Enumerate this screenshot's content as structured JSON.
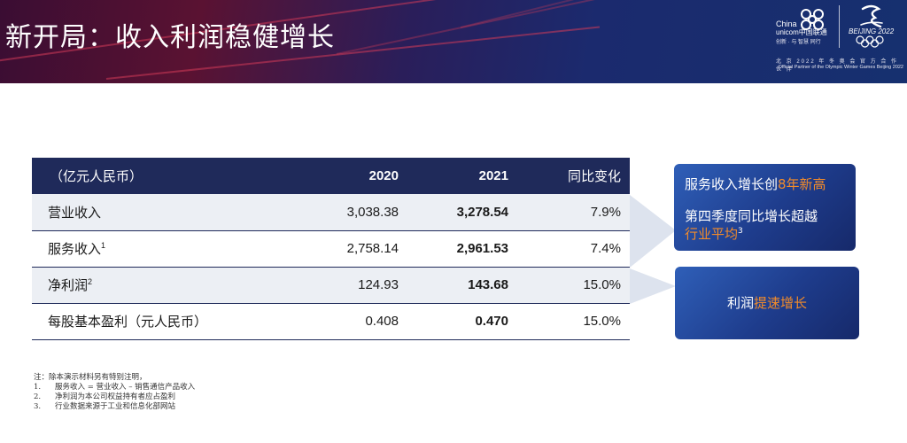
{
  "header": {
    "title": "新开局：收入利润稳健增长",
    "logo_cu_en1": "China",
    "logo_cu_en2": "unicom中国联通",
    "logo_cu_slogan": "创新 · 与 智慧 同行",
    "logo_bj": "BEIJING 2022",
    "partner_cn": "北 京 2022 年 冬 奥 会 官 方 合 作 伙 伴",
    "partner_en": "Official Partner of the Olympic Winter Games Beijing 2022",
    "colors": {
      "banner_start": "#3a0d33",
      "banner_end": "#16306f",
      "accent_red": "#d23a57"
    }
  },
  "table": {
    "headers": [
      "（亿元人民币）",
      "2020",
      "2021",
      "同比变化"
    ],
    "rows": [
      {
        "label": "营业收入",
        "sup": "",
        "v2020": "3,038.38",
        "v2021": "3,278.54",
        "change": "7.9%"
      },
      {
        "label": "服务收入",
        "sup": "1",
        "v2020": "2,758.14",
        "v2021": "2,961.53",
        "change": "7.4%"
      },
      {
        "label": "净利润",
        "sup": "2",
        "v2020": "124.93",
        "v2021": "143.68",
        "change": "15.0%"
      },
      {
        "label": "每股基本盈利（元人民币）",
        "sup": "",
        "v2020": "0.408",
        "v2021": "0.470",
        "change": "15.0%"
      }
    ],
    "colors": {
      "header_bg": "#1f2a5a",
      "row_shade": "#eceff4"
    }
  },
  "callouts": {
    "c1_line1_prefix": "服务收入增长创",
    "c1_line1_highlight": "8年新高",
    "c1_line2": "第四季度同比增长超越",
    "c1_line3_highlight": "行业平均",
    "c1_line3_sup": "3",
    "c2_prefix": "利润",
    "c2_highlight": "提速增长",
    "colors": {
      "highlight": "#f28b2a",
      "box_start": "#2f5fb8",
      "box_end": "#16296a"
    }
  },
  "notes": {
    "intro": "注：除本演示材料另有特别注明，",
    "items": [
      {
        "num": "1.",
        "text": "服务收入 = 营业收入 – 销售通信产品收入"
      },
      {
        "num": "2.",
        "text": "净利润为本公司权益持有者应占盈利"
      },
      {
        "num": "3.",
        "text": "行业数据来源于工业和信息化部网站"
      }
    ]
  }
}
